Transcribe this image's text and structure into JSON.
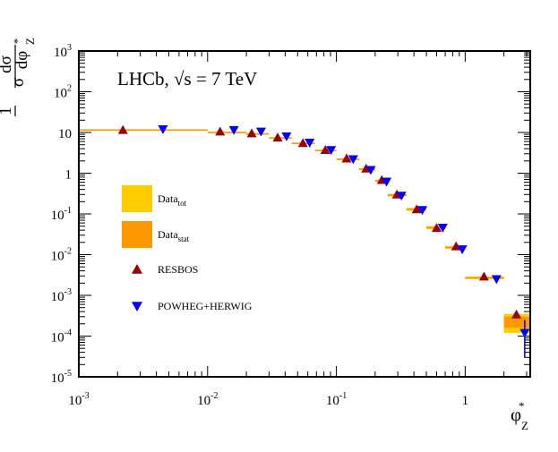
{
  "chart_data": {
    "type": "scatter",
    "title": "",
    "annotation": {
      "experiment": "LHCb, ",
      "sqrt": "√",
      "s": "s",
      "energy": " = 7 TeV"
    },
    "xlabel": {
      "base": "φ",
      "sup": "*",
      "sub": "Z"
    },
    "ylabel": {
      "one": "1",
      "sigma": "σ",
      "dsigma": "dσ",
      "dphi": "dφ",
      "sup": "*",
      "sub": "Z"
    },
    "x_scale": "log",
    "y_scale": "log",
    "xlim": [
      0.001,
      3.2
    ],
    "ylim": [
      1e-05,
      1000
    ],
    "x_ticks": [
      {
        "value": 0.001,
        "base": "10",
        "exp": "-3"
      },
      {
        "value": 0.01,
        "base": "10",
        "exp": "-2"
      },
      {
        "value": 0.1,
        "base": "10",
        "exp": "-1"
      },
      {
        "value": 1,
        "base": "1",
        "exp": ""
      }
    ],
    "y_ticks": [
      {
        "value": 1e-05,
        "base": "10",
        "exp": "-5"
      },
      {
        "value": 0.0001,
        "base": "10",
        "exp": "-4"
      },
      {
        "value": 0.001,
        "base": "10",
        "exp": "-3"
      },
      {
        "value": 0.01,
        "base": "10",
        "exp": "-2"
      },
      {
        "value": 0.1,
        "base": "10",
        "exp": "-1"
      },
      {
        "value": 1,
        "base": "1",
        "exp": ""
      },
      {
        "value": 10,
        "base": "10",
        "exp": ""
      },
      {
        "value": 100,
        "base": "10",
        "exp": "2"
      },
      {
        "value": 1000,
        "base": "10",
        "exp": "3"
      }
    ],
    "legend": {
      "placement": "left",
      "entries": [
        {
          "label": "Data",
          "sub": "tot",
          "kind": "box",
          "color": "#ffcc00"
        },
        {
          "label": "Data",
          "sub": "stat",
          "kind": "box",
          "color": "#ff9900"
        },
        {
          "label": "RESBOS",
          "sub": "",
          "kind": "triangle-up",
          "color": "#990000"
        },
        {
          "label": "POWHEG+HERWIG",
          "sub": "",
          "kind": "triangle-down",
          "color": "#0000ff"
        }
      ]
    },
    "colors": {
      "data_tot": "#ffcc00",
      "data_stat": "#ff9900",
      "resbos": "#990000",
      "powheg": "#0000ff"
    },
    "series": [
      {
        "name": "Data",
        "points": [
          {
            "x_low": 0.001,
            "x_high": 0.01,
            "y": 11.5,
            "y_low": 11.0,
            "y_high": 12.0
          },
          {
            "x_low": 0.01,
            "x_high": 0.02,
            "y": 10.0,
            "y_low": 9.6,
            "y_high": 10.4
          },
          {
            "x_low": 0.02,
            "x_high": 0.03,
            "y": 9.2,
            "y_low": 8.8,
            "y_high": 9.6
          },
          {
            "x_low": 0.03,
            "x_high": 0.045,
            "y": 7.3,
            "y_low": 7.0,
            "y_high": 7.6
          },
          {
            "x_low": 0.045,
            "x_high": 0.068,
            "y": 5.4,
            "y_low": 5.2,
            "y_high": 5.6
          },
          {
            "x_low": 0.068,
            "x_high": 0.1,
            "y": 3.6,
            "y_low": 3.45,
            "y_high": 3.75
          },
          {
            "x_low": 0.1,
            "x_high": 0.15,
            "y": 2.2,
            "y_low": 2.1,
            "y_high": 2.3
          },
          {
            "x_low": 0.15,
            "x_high": 0.2,
            "y": 1.25,
            "y_low": 1.19,
            "y_high": 1.31
          },
          {
            "x_low": 0.2,
            "x_high": 0.25,
            "y": 0.65,
            "y_low": 0.61,
            "y_high": 0.69
          },
          {
            "x_low": 0.25,
            "x_high": 0.35,
            "y": 0.29,
            "y_low": 0.27,
            "y_high": 0.31
          },
          {
            "x_low": 0.35,
            "x_high": 0.5,
            "y": 0.13,
            "y_low": 0.12,
            "y_high": 0.14
          },
          {
            "x_low": 0.5,
            "x_high": 0.7,
            "y": 0.046,
            "y_low": 0.042,
            "y_high": 0.05
          },
          {
            "x_low": 0.7,
            "x_high": 1.0,
            "y": 0.015,
            "y_low": 0.0138,
            "y_high": 0.0162
          },
          {
            "x_low": 1.0,
            "x_high": 2.0,
            "y": 0.0027,
            "y_low": 0.0025,
            "y_high": 0.0029
          },
          {
            "x_low": 2.0,
            "x_high": 3.2,
            "y": 0.00022,
            "y_low": 0.00012,
            "y_high": 0.00035,
            "stat_low": 0.00016,
            "stat_high": 0.0003
          }
        ]
      },
      {
        "name": "RESBOS",
        "points": [
          {
            "x": 0.0022,
            "y": 11.5
          },
          {
            "x": 0.0125,
            "y": 10.5
          },
          {
            "x": 0.022,
            "y": 9.5
          },
          {
            "x": 0.035,
            "y": 7.5
          },
          {
            "x": 0.055,
            "y": 5.5
          },
          {
            "x": 0.082,
            "y": 3.7
          },
          {
            "x": 0.12,
            "y": 2.3
          },
          {
            "x": 0.17,
            "y": 1.3
          },
          {
            "x": 0.225,
            "y": 0.68
          },
          {
            "x": 0.295,
            "y": 0.3
          },
          {
            "x": 0.42,
            "y": 0.13
          },
          {
            "x": 0.6,
            "y": 0.045
          },
          {
            "x": 0.85,
            "y": 0.016
          },
          {
            "x": 1.4,
            "y": 0.0029
          },
          {
            "x": 2.5,
            "y": 0.00034
          }
        ]
      },
      {
        "name": "POWHEG+HERWIG",
        "points": [
          {
            "x": 0.0045,
            "y": 12.0,
            "y_low": 12.0,
            "y_high": 12.0
          },
          {
            "x": 0.016,
            "y": 11.5,
            "y_low": 11.5,
            "y_high": 11.5
          },
          {
            "x": 0.026,
            "y": 10.5,
            "y_low": 10.5,
            "y_high": 10.5
          },
          {
            "x": 0.041,
            "y": 8.0,
            "y_low": 8.0,
            "y_high": 8.0
          },
          {
            "x": 0.062,
            "y": 5.6,
            "y_low": 5.6,
            "y_high": 5.6
          },
          {
            "x": 0.091,
            "y": 3.7,
            "y_low": 3.7,
            "y_high": 3.7
          },
          {
            "x": 0.135,
            "y": 2.2,
            "y_low": 2.2,
            "y_high": 2.2
          },
          {
            "x": 0.185,
            "y": 1.2,
            "y_low": 1.2,
            "y_high": 1.2
          },
          {
            "x": 0.245,
            "y": 0.62,
            "y_low": 0.62,
            "y_high": 0.62
          },
          {
            "x": 0.32,
            "y": 0.28,
            "y_low": 0.28,
            "y_high": 0.28
          },
          {
            "x": 0.465,
            "y": 0.125,
            "y_low": 0.125,
            "y_high": 0.125
          },
          {
            "x": 0.67,
            "y": 0.046,
            "y_low": 0.04,
            "y_high": 0.05
          },
          {
            "x": 0.95,
            "y": 0.0135,
            "y_low": 0.0135,
            "y_high": 0.0135
          },
          {
            "x": 1.75,
            "y": 0.0025,
            "y_low": 0.0025,
            "y_high": 0.0025
          },
          {
            "x": 2.9,
            "y": 0.00012,
            "y_low": 3e-05,
            "y_high": 0.00025
          }
        ]
      }
    ]
  }
}
